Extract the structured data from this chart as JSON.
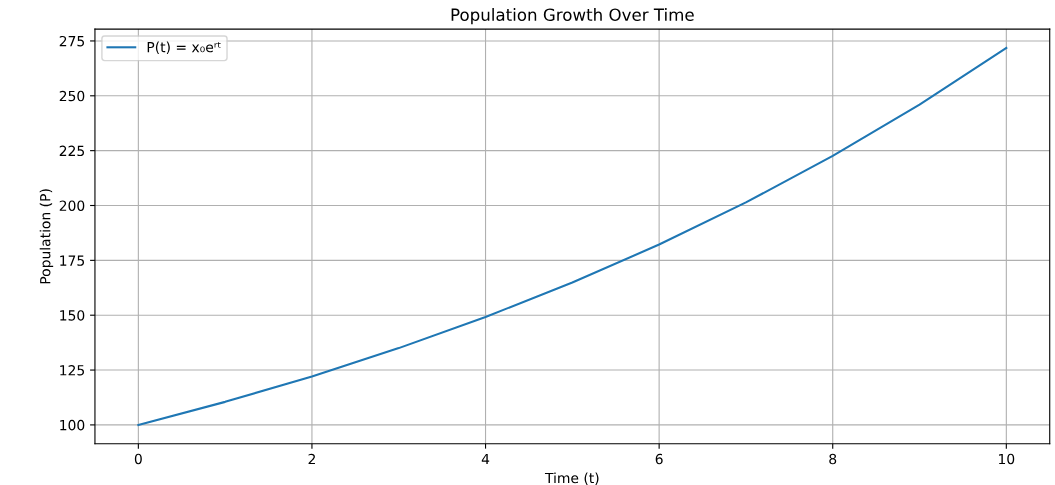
{
  "chart_data": {
    "type": "line",
    "title": "Population Growth Over Time",
    "xlabel": "Time (t)",
    "ylabel": "Population (P)",
    "x": [
      0,
      1,
      2,
      3,
      4,
      5,
      6,
      7,
      8,
      9,
      10
    ],
    "series": [
      {
        "name": "P(t) = x₀eʳᵗ",
        "color": "#1f77b4",
        "values": [
          100,
          110.5,
          122.1,
          135,
          149.2,
          164.9,
          182.2,
          201.4,
          222.6,
          246,
          271.8
        ]
      }
    ],
    "xlim": [
      -0.5,
      10.5
    ],
    "ylim": [
      91.4,
      280.4
    ],
    "xticks": [
      0,
      2,
      4,
      6,
      8,
      10
    ],
    "yticks": [
      100,
      125,
      150,
      175,
      200,
      225,
      250,
      275
    ],
    "grid": true,
    "legend": "top left",
    "marker": "none",
    "line_style": "solid"
  }
}
